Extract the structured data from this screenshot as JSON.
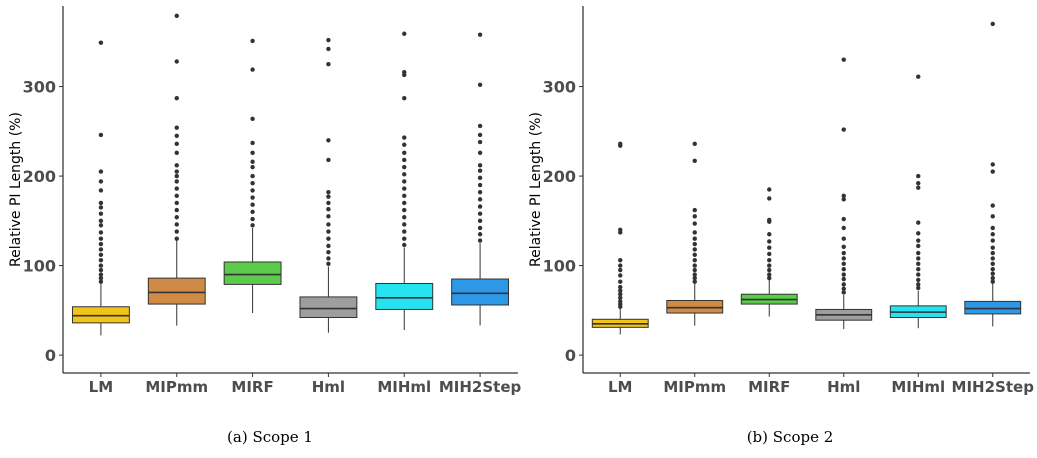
{
  "captions": [
    "(a) Scope 1",
    "(b) Scope 2"
  ],
  "chart_data": [
    {
      "type": "boxplot",
      "ylabel": "Relative PI Length (%)",
      "xlabel": "",
      "ylim": [
        -20,
        390
      ],
      "yticks": [
        0,
        100,
        200,
        300
      ],
      "grid": false,
      "categories": [
        "LM",
        "MIPmm",
        "MIRF",
        "Hml",
        "MIHml",
        "MIH2Step"
      ],
      "colors": [
        "#f2c318",
        "#cf8a45",
        "#5ccb4b",
        "#9e9e9e",
        "#27e3ef",
        "#2d97e8"
      ],
      "boxes": [
        {
          "whisker_low": 22,
          "q1": 36,
          "median": 44,
          "q3": 54,
          "whisker_high": 80,
          "outliers": [
            82,
            86,
            90,
            95,
            100,
            106,
            112,
            118,
            124,
            130,
            137,
            145,
            150,
            158,
            165,
            170,
            184,
            194,
            205,
            246,
            349
          ]
        },
        {
          "whisker_low": 33,
          "q1": 57,
          "median": 70,
          "q3": 86,
          "whisker_high": 128,
          "outliers": [
            130,
            138,
            146,
            154,
            162,
            170,
            178,
            186,
            194,
            200,
            205,
            212,
            226,
            236,
            245,
            254,
            287,
            328,
            379
          ]
        },
        {
          "whisker_low": 47,
          "q1": 79,
          "median": 90,
          "q3": 104,
          "whisker_high": 142,
          "outliers": [
            145,
            152,
            160,
            168,
            176,
            184,
            192,
            200,
            210,
            216,
            226,
            237,
            264,
            319,
            351
          ]
        },
        {
          "whisker_low": 25,
          "q1": 42,
          "median": 52,
          "q3": 65,
          "whisker_high": 99,
          "outliers": [
            102,
            108,
            115,
            122,
            130,
            138,
            146,
            155,
            163,
            170,
            177,
            182,
            218,
            240,
            325,
            342,
            352
          ]
        },
        {
          "whisker_low": 28,
          "q1": 51,
          "median": 64,
          "q3": 80,
          "whisker_high": 120,
          "outliers": [
            123,
            130,
            138,
            146,
            154,
            162,
            170,
            178,
            186,
            194,
            202,
            210,
            218,
            226,
            235,
            243,
            287,
            313,
            316,
            359
          ]
        },
        {
          "whisker_low": 33,
          "q1": 56,
          "median": 69,
          "q3": 85,
          "whisker_high": 125,
          "outliers": [
            128,
            135,
            142,
            150,
            158,
            166,
            174,
            182,
            190,
            198,
            206,
            212,
            226,
            238,
            246,
            256,
            302,
            358
          ]
        }
      ]
    },
    {
      "type": "boxplot",
      "ylabel": "Relative PI Length (%)",
      "xlabel": "",
      "ylim": [
        -20,
        390
      ],
      "yticks": [
        0,
        100,
        200,
        300
      ],
      "grid": false,
      "categories": [
        "LM",
        "MIPmm",
        "MIRF",
        "Hml",
        "MIHml",
        "MIH2Step"
      ],
      "colors": [
        "#f2c318",
        "#cf8a45",
        "#5ccb4b",
        "#9e9e9e",
        "#27e3ef",
        "#2d97e8"
      ],
      "boxes": [
        {
          "whisker_low": 23,
          "q1": 31,
          "median": 35,
          "q3": 40,
          "whisker_high": 52,
          "outliers": [
            54,
            57,
            60,
            64,
            68,
            72,
            76,
            82,
            89,
            95,
            100,
            106,
            137,
            140,
            234,
            236
          ]
        },
        {
          "whisker_low": 33,
          "q1": 47,
          "median": 53,
          "q3": 61,
          "whisker_high": 80,
          "outliers": [
            82,
            86,
            90,
            95,
            100,
            106,
            112,
            118,
            124,
            130,
            137,
            147,
            155,
            162,
            217,
            236
          ]
        },
        {
          "whisker_low": 43,
          "q1": 57,
          "median": 62,
          "q3": 68,
          "whisker_high": 84,
          "outliers": [
            86,
            90,
            95,
            100,
            106,
            113,
            120,
            127,
            135,
            149,
            151,
            175,
            185
          ]
        },
        {
          "whisker_low": 29,
          "q1": 39,
          "median": 45,
          "q3": 51,
          "whisker_high": 67,
          "outliers": [
            70,
            74,
            79,
            85,
            90,
            96,
            102,
            108,
            114,
            121,
            130,
            142,
            152,
            174,
            178,
            252,
            330
          ]
        },
        {
          "whisker_low": 30,
          "q1": 42,
          "median": 48,
          "q3": 55,
          "whisker_high": 72,
          "outliers": [
            75,
            79,
            84,
            90,
            96,
            102,
            108,
            114,
            122,
            128,
            136,
            148,
            187,
            192,
            200,
            311
          ]
        },
        {
          "whisker_low": 32,
          "q1": 46,
          "median": 52,
          "q3": 60,
          "whisker_high": 80,
          "outliers": [
            82,
            86,
            91,
            96,
            102,
            108,
            114,
            120,
            128,
            135,
            142,
            155,
            167,
            205,
            213,
            370
          ]
        }
      ]
    }
  ]
}
